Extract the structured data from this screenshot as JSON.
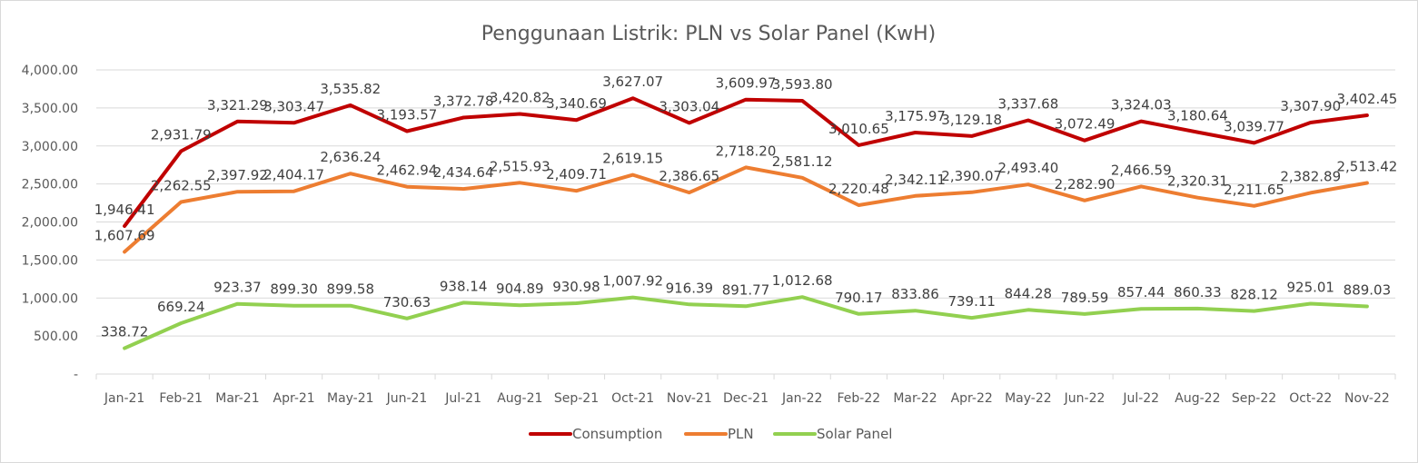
{
  "chart_data": {
    "type": "line",
    "title": "Penggunaan Listrik: PLN vs Solar Panel (KwH)",
    "xlabel": "",
    "ylabel": "",
    "ylim": [
      0,
      4000
    ],
    "yticks": [
      0,
      500,
      1000,
      1500,
      2000,
      2500,
      3000,
      3500,
      4000
    ],
    "ytick_labels": [
      "-",
      "500.00",
      "1,000.00",
      "1,500.00",
      "2,000.00",
      "2,500.00",
      "3,000.00",
      "3,500.00",
      "4,000.00"
    ],
    "grid": true,
    "legend_position": "bottom",
    "categories": [
      "Jan-21",
      "Feb-21",
      "Mar-21",
      "Apr-21",
      "May-21",
      "Jun-21",
      "Jul-21",
      "Aug-21",
      "Sep-21",
      "Oct-21",
      "Nov-21",
      "Dec-21",
      "Jan-22",
      "Feb-22",
      "Mar-22",
      "Apr-22",
      "May-22",
      "Jun-22",
      "Jul-22",
      "Aug-22",
      "Sep-22",
      "Oct-22",
      "Nov-22"
    ],
    "series": [
      {
        "name": "Consumption",
        "color": "#c00000",
        "values": [
          1946.41,
          2931.79,
          3321.29,
          3303.47,
          3535.82,
          3193.57,
          3372.78,
          3420.82,
          3340.69,
          3627.07,
          3303.04,
          3609.97,
          3593.8,
          3010.65,
          3175.97,
          3129.18,
          3337.68,
          3072.49,
          3324.03,
          3180.64,
          3039.77,
          3307.9,
          3402.45
        ],
        "labels": [
          "1,946.41",
          "2,931.79",
          "3,321.29",
          "3,303.47",
          "3,535.82",
          "3,193.57",
          "3,372.78",
          "3,420.82",
          "3,340.69",
          "3,627.07",
          "3,303.04",
          "3,609.97",
          "3,593.80",
          "3,010.65",
          "3,175.97",
          "3,129.18",
          "3,337.68",
          "3,072.49",
          "3,324.03",
          "3,180.64",
          "3,039.77",
          "3,307.90",
          "3,402.45"
        ]
      },
      {
        "name": "PLN",
        "color": "#ed7d31",
        "values": [
          1607.69,
          2262.55,
          2397.92,
          2404.17,
          2636.24,
          2462.94,
          2434.64,
          2515.93,
          2409.71,
          2619.15,
          2386.65,
          2718.2,
          2581.12,
          2220.48,
          2342.11,
          2390.07,
          2493.4,
          2282.9,
          2466.59,
          2320.31,
          2211.65,
          2382.89,
          2513.42
        ],
        "labels": [
          "1,607.69",
          "2,262.55",
          "2,397.92",
          "2,404.17",
          "2,636.24",
          "2,462.94",
          "2,434.64",
          "2,515.93",
          "2,409.71",
          "2,619.15",
          "2,386.65",
          "2,718.20",
          "2,581.12",
          "2,220.48",
          "2,342.11",
          "2,390.07",
          "2,493.40",
          "2,282.90",
          "2,466.59",
          "2,320.31",
          "2,211.65",
          "2,382.89",
          "2,513.42"
        ]
      },
      {
        "name": "Solar Panel",
        "color": "#92d050",
        "values": [
          338.72,
          669.24,
          923.37,
          899.3,
          899.58,
          730.63,
          938.14,
          904.89,
          930.98,
          1007.92,
          916.39,
          891.77,
          1012.68,
          790.17,
          833.86,
          739.11,
          844.28,
          789.59,
          857.44,
          860.33,
          828.12,
          925.01,
          889.03
        ],
        "labels": [
          "338.72",
          "669.24",
          "923.37",
          "899.30",
          "899.58",
          "730.63",
          "938.14",
          "904.89",
          "930.98",
          "1,007.92",
          "916.39",
          "891.77",
          "1,012.68",
          "790.17",
          "833.86",
          "739.11",
          "844.28",
          "789.59",
          "857.44",
          "860.33",
          "828.12",
          "925.01",
          "889.03"
        ]
      }
    ]
  }
}
